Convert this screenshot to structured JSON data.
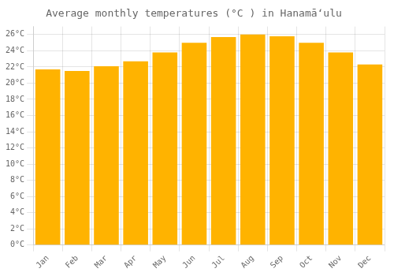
{
  "chart_data": {
    "type": "bar",
    "title": "Average monthly temperatures (°C ) in Hanamāʻulu",
    "categories": [
      "Jan",
      "Feb",
      "Mar",
      "Apr",
      "May",
      "Jun",
      "Jul",
      "Aug",
      "Sep",
      "Oct",
      "Nov",
      "Dec"
    ],
    "values": [
      21.7,
      21.5,
      22.1,
      22.7,
      23.8,
      25.0,
      25.7,
      26.0,
      25.8,
      25.0,
      23.8,
      22.3
    ],
    "color": "#FFB300",
    "ylim": [
      0,
      27
    ],
    "yticks": [
      {
        "value": 0,
        "label": "0°C"
      },
      {
        "value": 2,
        "label": "2°C"
      },
      {
        "value": 4,
        "label": "4°C"
      },
      {
        "value": 6,
        "label": "6°C"
      },
      {
        "value": 8,
        "label": "8°C"
      },
      {
        "value": 10,
        "label": "10°C"
      },
      {
        "value": 12,
        "label": "12°C"
      },
      {
        "value": 14,
        "label": "14°C"
      },
      {
        "value": 16,
        "label": "16°C"
      },
      {
        "value": 18,
        "label": "18°C"
      },
      {
        "value": 20,
        "label": "20°C"
      },
      {
        "value": 22,
        "label": "22°C"
      },
      {
        "value": 24,
        "label": "24°C"
      },
      {
        "value": 26,
        "label": "26°C"
      }
    ],
    "grid": true
  }
}
